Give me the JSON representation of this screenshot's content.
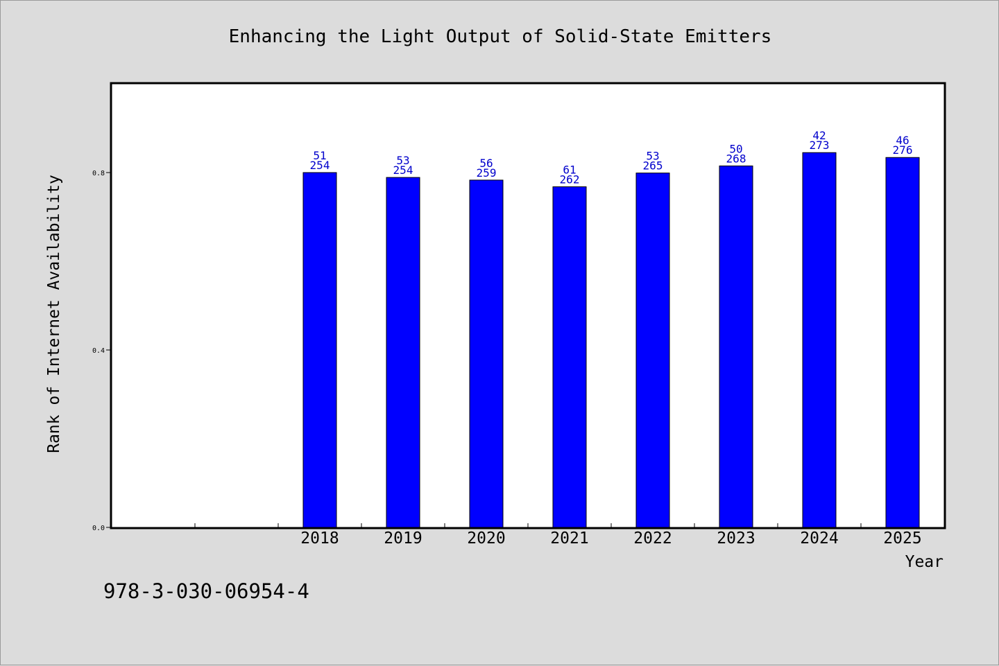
{
  "chart_data": {
    "type": "bar",
    "title": "Enhancing the Light Output of Solid-State Emitters",
    "xlabel": "Year",
    "ylabel": "Rank of Internet Availability",
    "footer": "978-3-030-06954-4",
    "categories": [
      "2018",
      "2019",
      "2020",
      "2021",
      "2022",
      "2023",
      "2024",
      "2025"
    ],
    "values": [
      0.8,
      0.789,
      0.783,
      0.768,
      0.799,
      0.815,
      0.845,
      0.834
    ],
    "labels_top": [
      "51",
      "53",
      "56",
      "61",
      "53",
      "50",
      "42",
      "46"
    ],
    "labels_bottom": [
      "254",
      "254",
      "259",
      "262",
      "265",
      "268",
      "273",
      "276"
    ],
    "y_ticks": [
      "0.0",
      "0.4",
      "0.8"
    ],
    "ylim": [
      0,
      1.0
    ],
    "bar_color": "#0000ff",
    "label_color": "#0000cc",
    "grid": false
  }
}
